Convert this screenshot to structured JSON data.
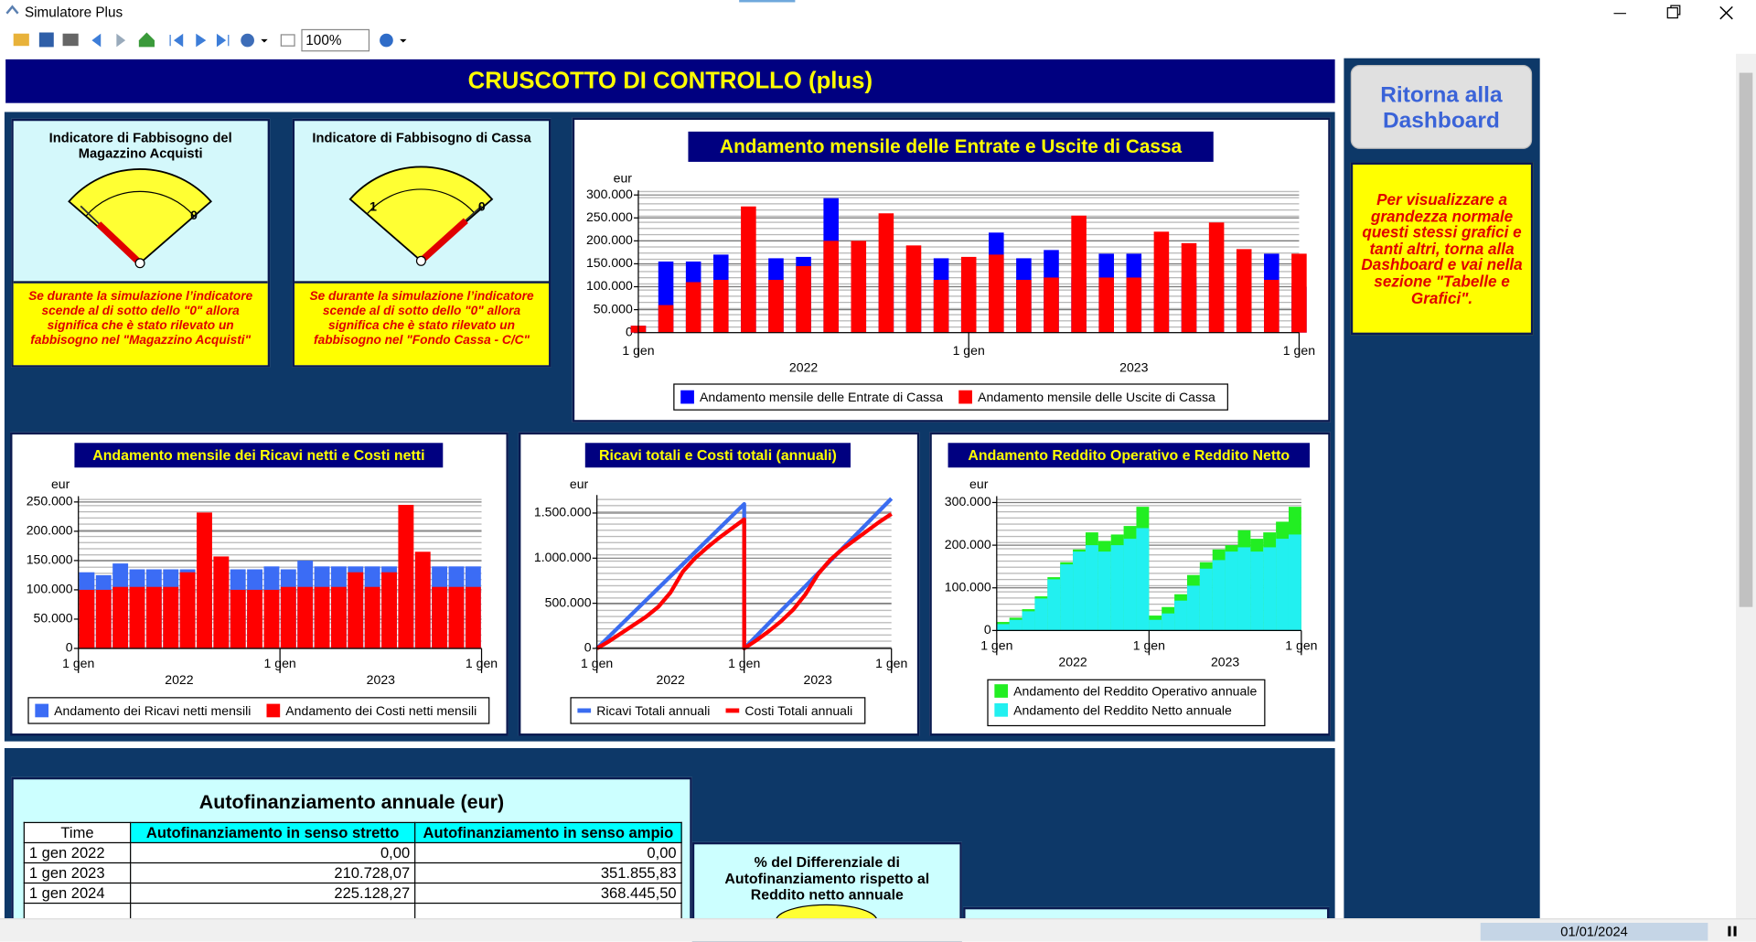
{
  "window": {
    "title": "Simulatore Plus",
    "zoom": "100%"
  },
  "header": {
    "title": "CRUSCOTTO DI CONTROLLO (plus)"
  },
  "sidebar": {
    "button": "Ritorna alla Dashboard",
    "note": "Per visualizzare a grandezza normale questi stessi grafici e tanti altri, torna alla Dashboard e vai nella sezione \"Tabelle e Grafici\"."
  },
  "gauges": [
    {
      "title": "Indicatore di Fabbisogno del Magazzino Acquisti",
      "scale_labels": [
        "0"
      ],
      "note": "Se durante la simulazione l’indicatore scende al di sotto dello \"0\" allora significa che è stato rilevato un fabbisogno nel \"Magazzino Acquisti\""
    },
    {
      "title": "Indicatore di Fabbisogno di Cassa",
      "scale_labels": [
        "1",
        "0"
      ],
      "note": "Se durante la simulazione l’indicatore scende al di sotto dello \"0\" allora significa che è stato rilevato un fabbisogno nel \"Fondo Cassa - C/C\""
    }
  ],
  "chart_data": [
    {
      "type": "bar",
      "title": "Andamento mensile delle Entrate e Uscite di Cassa",
      "ylabel": "eur",
      "grid": true,
      "x": [
        0,
        1,
        2,
        3,
        4,
        5,
        6,
        7,
        8,
        9,
        10,
        11,
        12,
        13,
        14,
        15,
        16,
        17,
        18,
        19,
        20,
        21,
        22,
        23,
        24
      ],
      "xlim": [
        0,
        24
      ],
      "xticks": [
        {
          "value": 0,
          "label": "1 gen"
        },
        {
          "value": 12,
          "label": "1 gen"
        },
        {
          "value": 24,
          "label": "1 gen"
        }
      ],
      "xsublabels": [
        {
          "value": 6,
          "label": "2022"
        },
        {
          "value": 18,
          "label": "2023"
        }
      ],
      "ylim": [
        0,
        310000
      ],
      "yticks": [
        0,
        {
          "value": 50000,
          "label": "50.000"
        },
        {
          "value": 100000,
          "label": "100.000"
        },
        {
          "value": 150000,
          "label": "150.000"
        },
        {
          "value": 200000,
          "label": "200.000"
        },
        {
          "value": 250000,
          "label": "250.000"
        },
        {
          "value": 300000,
          "label": "300.000"
        }
      ],
      "series": [
        {
          "name": "Andamento mensile delle Entrate di Cassa",
          "color": "#0000ff",
          "values": [
            15000,
            155000,
            155000,
            170000,
            140000,
            162000,
            165000,
            293000,
            150000,
            130000,
            125000,
            162000,
            120000,
            218000,
            162000,
            180000,
            120000,
            172000,
            172000,
            120000,
            120000,
            120000,
            120000,
            172000,
            100000
          ]
        },
        {
          "name": "Andamento mensile delle Uscite di Cassa",
          "color": "#ff0000",
          "values": [
            15000,
            60000,
            110000,
            115000,
            275000,
            115000,
            145000,
            200000,
            200000,
            260000,
            190000,
            115000,
            165000,
            170000,
            115000,
            120000,
            255000,
            120000,
            120000,
            220000,
            195000,
            240000,
            182000,
            115000,
            172000
          ]
        }
      ]
    },
    {
      "type": "bar",
      "title": "Andamento mensile dei Ricavi netti e Costi netti",
      "ylabel": "eur",
      "grid": true,
      "x": [
        0.5,
        1.5,
        2.5,
        3.5,
        4.5,
        5.5,
        6.5,
        7.5,
        8.5,
        9.5,
        10.5,
        11.5,
        12.5,
        13.5,
        14.5,
        15.5,
        16.5,
        17.5,
        18.5,
        19.5,
        20.5,
        21.5,
        22.5,
        23.5
      ],
      "xlim": [
        0,
        24
      ],
      "xticks": [
        {
          "value": 0,
          "label": "1 gen"
        },
        {
          "value": 12,
          "label": "1 gen"
        },
        {
          "value": 24,
          "label": "1 gen"
        }
      ],
      "xsublabels": [
        {
          "value": 6,
          "label": "2022"
        },
        {
          "value": 18,
          "label": "2023"
        }
      ],
      "ylim": [
        0,
        260000
      ],
      "yticks": [
        0,
        {
          "value": 50000,
          "label": "50.000"
        },
        {
          "value": 100000,
          "label": "100.000"
        },
        {
          "value": 150000,
          "label": "150.000"
        },
        {
          "value": 200000,
          "label": "200.000"
        },
        {
          "value": 250000,
          "label": "250.000"
        }
      ],
      "series": [
        {
          "name": "Andamento dei Ricavi netti mensili",
          "color": "#3b6cf5",
          "values": [
            130000,
            125000,
            145000,
            135000,
            135000,
            135000,
            135000,
            120000,
            140000,
            135000,
            135000,
            140000,
            135000,
            150000,
            140000,
            140000,
            140000,
            140000,
            140000,
            125000,
            140000,
            140000,
            140000,
            140000
          ]
        },
        {
          "name": "Andamento dei Costi netti mensili",
          "color": "#ff0000",
          "values": [
            100000,
            100000,
            105000,
            105000,
            105000,
            105000,
            130000,
            232000,
            157000,
            100000,
            100000,
            100000,
            105000,
            105000,
            105000,
            105000,
            130000,
            105000,
            130000,
            245000,
            165000,
            105000,
            105000,
            105000
          ]
        }
      ]
    },
    {
      "type": "line",
      "title": "Ricavi totali e Costi totali (annuali)",
      "ylabel": "eur",
      "grid": true,
      "x": [
        0,
        1,
        2,
        3,
        4,
        5,
        6,
        7,
        8,
        9,
        10,
        11,
        12,
        12,
        13,
        14,
        15,
        16,
        17,
        18,
        19,
        20,
        21,
        22,
        23,
        24
      ],
      "xlim": [
        0,
        24
      ],
      "xticks": [
        {
          "value": 0,
          "label": "1 gen"
        },
        {
          "value": 12,
          "label": "1 gen"
        },
        {
          "value": 24,
          "label": "1 gen"
        }
      ],
      "xsublabels": [
        {
          "value": 6,
          "label": "2022"
        },
        {
          "value": 18,
          "label": "2023"
        }
      ],
      "ylim": [
        0,
        1700000
      ],
      "yticks": [
        0,
        {
          "value": 500000,
          "label": "500.000"
        },
        {
          "value": 1000000,
          "label": "1.000.000"
        },
        {
          "value": 1500000,
          "label": "1.500.000"
        }
      ],
      "series": [
        {
          "name": "Ricavi Totali annuali",
          "color": "#3a6cf0",
          "values": [
            0,
            133000,
            267000,
            400000,
            533000,
            667000,
            800000,
            933000,
            1067000,
            1200000,
            1333000,
            1467000,
            1600000,
            0,
            138000,
            277000,
            415000,
            553000,
            692000,
            830000,
            968000,
            1107000,
            1245000,
            1383000,
            1522000,
            1660000
          ]
        },
        {
          "name": "Costi Totali annuali",
          "color": "#ff0000",
          "values": [
            0,
            80000,
            170000,
            260000,
            350000,
            460000,
            620000,
            850000,
            1000000,
            1120000,
            1230000,
            1330000,
            1430000,
            0,
            90000,
            190000,
            300000,
            430000,
            600000,
            820000,
            980000,
            1100000,
            1200000,
            1300000,
            1400000,
            1490000
          ]
        }
      ]
    },
    {
      "type": "bar",
      "title": "Andamento Reddito Operativo e Reddito Netto",
      "ylabel": "eur",
      "grid": true,
      "x": [
        0.5,
        1.5,
        2.5,
        3.5,
        4.5,
        5.5,
        6.5,
        7.5,
        8.5,
        9.5,
        10.5,
        11.5,
        12.5,
        13.5,
        14.5,
        15.5,
        16.5,
        17.5,
        18.5,
        19.5,
        20.5,
        21.5,
        22.5,
        23.5
      ],
      "xlim": [
        0,
        24
      ],
      "xticks": [
        {
          "value": 0,
          "label": "1 gen"
        },
        {
          "value": 12,
          "label": "1 gen"
        },
        {
          "value": 24,
          "label": "1 gen"
        }
      ],
      "xsublabels": [
        {
          "value": 6,
          "label": "2022"
        },
        {
          "value": 18,
          "label": "2023"
        }
      ],
      "ylim": [
        0,
        315000
      ],
      "yticks": [
        0,
        {
          "value": 100000,
          "label": "100.000"
        },
        {
          "value": 200000,
          "label": "200.000"
        },
        {
          "value": 300000,
          "label": "300.000"
        }
      ],
      "series": [
        {
          "name": "Andamento del Reddito Operativo annuale",
          "color": "#22ee22",
          "values": [
            20000,
            30000,
            50000,
            80000,
            125000,
            160000,
            190000,
            230000,
            210000,
            225000,
            245000,
            290000,
            35000,
            55000,
            85000,
            130000,
            160000,
            190000,
            200000,
            235000,
            215000,
            230000,
            255000,
            290000
          ]
        },
        {
          "name": "Andamento del Reddito Netto annuale",
          "color": "#22f0f0",
          "values": [
            15000,
            25000,
            45000,
            75000,
            120000,
            155000,
            185000,
            200000,
            185000,
            200000,
            215000,
            240000,
            25000,
            40000,
            70000,
            105000,
            145000,
            165000,
            185000,
            195000,
            185000,
            195000,
            215000,
            225000
          ]
        }
      ]
    }
  ],
  "table": {
    "title": "Autofinanziamento annuale  (eur)",
    "columns": [
      "Time",
      "Autofinanziamento in senso stretto",
      "Autofinanziamento in senso ampio"
    ],
    "rows": [
      [
        "1 gen 2022",
        "0,00",
        "0,00"
      ],
      [
        "1 gen 2023",
        "210.728,07",
        "351.855,83"
      ],
      [
        "1 gen 2024",
        "225.128,27",
        "368.445,50"
      ]
    ]
  },
  "side_panel": {
    "title": "% del Differenziale di Autofinanziamento rispetto al Reddito netto annuale"
  },
  "status": {
    "date": "01/01/2024"
  }
}
